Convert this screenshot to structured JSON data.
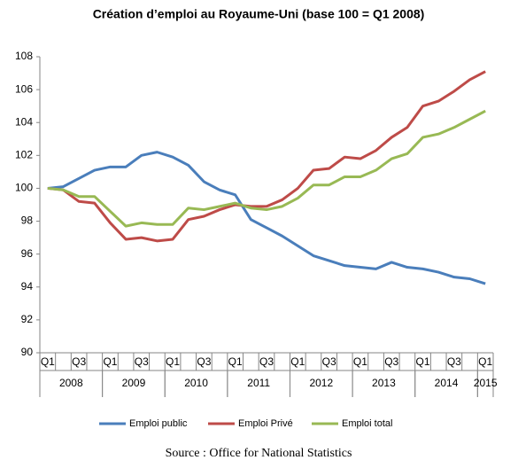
{
  "chart_data": {
    "type": "line",
    "title": "Création d’emploi au Royaume-Uni (base 100 = Q1 2008)",
    "categories": [
      "Q1",
      null,
      "Q3",
      null,
      "Q1",
      null,
      "Q3",
      null,
      "Q1",
      null,
      "Q3",
      null,
      "Q1",
      null,
      "Q3",
      null,
      "Q1",
      null,
      "Q3",
      null,
      "Q1",
      null,
      "Q3",
      null,
      "Q1",
      null,
      "Q3",
      null,
      "Q1"
    ],
    "groups": [
      {
        "label": "2008",
        "span": 4
      },
      {
        "label": "2009",
        "span": 4
      },
      {
        "label": "2010",
        "span": 4
      },
      {
        "label": "2011",
        "span": 4
      },
      {
        "label": "2012",
        "span": 4
      },
      {
        "label": "2013",
        "span": 4
      },
      {
        "label": "2014",
        "span": 4
      },
      {
        "label": "2015",
        "span": 1
      }
    ],
    "series": [
      {
        "name": "Emploi public",
        "color": "#4a7ebb",
        "values": [
          100,
          100.1,
          100.6,
          101.1,
          101.3,
          101.3,
          102.0,
          102.2,
          101.9,
          101.4,
          100.4,
          99.9,
          99.6,
          98.1,
          97.6,
          97.1,
          96.5,
          95.9,
          95.6,
          95.3,
          95.2,
          95.1,
          95.5,
          95.2,
          95.1,
          94.9,
          94.6,
          94.5,
          94.2
        ]
      },
      {
        "name": "Emploi Privé",
        "color": "#be4b48",
        "values": [
          100,
          99.9,
          99.2,
          99.1,
          97.9,
          96.9,
          97.0,
          96.8,
          96.9,
          98.1,
          98.3,
          98.7,
          99.0,
          98.9,
          98.9,
          99.3,
          100.0,
          101.1,
          101.2,
          101.9,
          101.8,
          102.3,
          103.1,
          103.7,
          105.0,
          105.3,
          105.9,
          106.6,
          107.1
        ]
      },
      {
        "name": "Emploi total",
        "color": "#98b954",
        "values": [
          100,
          99.9,
          99.5,
          99.5,
          98.6,
          97.7,
          97.9,
          97.8,
          97.8,
          98.8,
          98.7,
          98.9,
          99.1,
          98.8,
          98.7,
          98.9,
          99.4,
          100.2,
          100.2,
          100.7,
          100.7,
          101.1,
          101.8,
          102.1,
          103.1,
          103.3,
          103.7,
          104.2,
          104.7
        ]
      }
    ],
    "ylim": [
      90,
      108
    ],
    "yticks": [
      90,
      92,
      94,
      96,
      98,
      100,
      102,
      104,
      106,
      108
    ],
    "source": "Source : Office for National Statistics"
  }
}
